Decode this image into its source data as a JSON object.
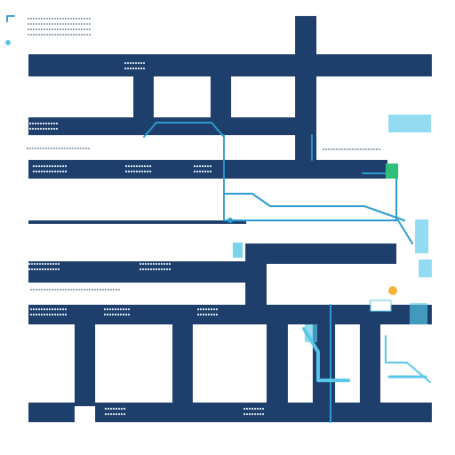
{
  "map": {
    "background": "#ffffff",
    "street_color": "#1e3f6b",
    "route_color": "#2b9bd0",
    "accent_color": "#58c7ea",
    "green_color": "#2fbf7a",
    "text_color": "#1e3f6b",
    "gray_text_color": "#9aa7b8",
    "icons": [
      "location-marker-icon",
      "pin-icon",
      "legend-icon",
      "route-marker-icon"
    ]
  }
}
